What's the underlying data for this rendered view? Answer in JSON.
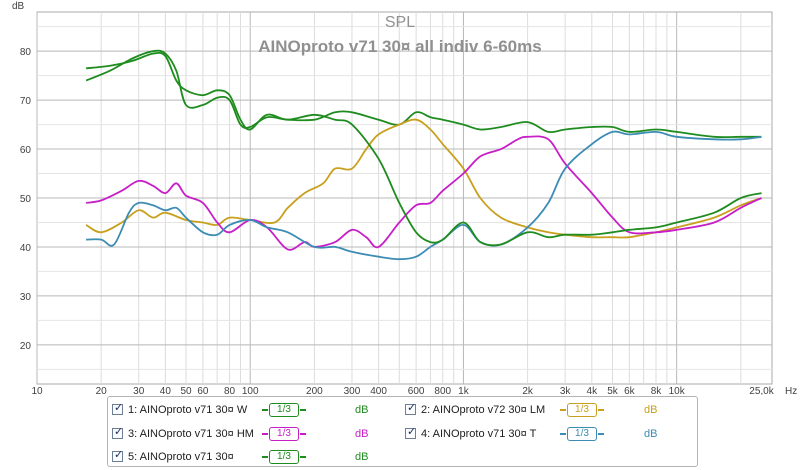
{
  "chart_data": {
    "type": "line",
    "title": "SPL",
    "subtitle": "AINOproto v71 30¤ all indiv 6-60ms",
    "ylabel": "dB",
    "xunit": "Hz",
    "xscale": "log",
    "xlim": [
      10,
      28000
    ],
    "ylim": [
      12,
      88
    ],
    "grid": true,
    "yticks": [
      20,
      30,
      40,
      50,
      60,
      70,
      80
    ],
    "xticks": [
      {
        "v": 10,
        "label": "10"
      },
      {
        "v": 20,
        "label": "20"
      },
      {
        "v": 30,
        "label": "30"
      },
      {
        "v": 40,
        "label": "40"
      },
      {
        "v": 50,
        "label": "50"
      },
      {
        "v": 60,
        "label": "60"
      },
      {
        "v": 80,
        "label": "80"
      },
      {
        "v": 100,
        "label": "100"
      },
      {
        "v": 200,
        "label": "200"
      },
      {
        "v": 300,
        "label": "300"
      },
      {
        "v": 400,
        "label": "400"
      },
      {
        "v": 600,
        "label": "600"
      },
      {
        "v": 800,
        "label": "800"
      },
      {
        "v": 1000,
        "label": "1k"
      },
      {
        "v": 2000,
        "label": "2k"
      },
      {
        "v": 3000,
        "label": "3k"
      },
      {
        "v": 4000,
        "label": "4k"
      },
      {
        "v": 5000,
        "label": "5k"
      },
      {
        "v": 6000,
        "label": "6k"
      },
      {
        "v": 8000,
        "label": "8k"
      },
      {
        "v": 10000,
        "label": "10k"
      },
      {
        "v": 25000,
        "label": "25,0k"
      }
    ],
    "series": [
      {
        "name": "1: AINOproto v71 30¤ W",
        "color": "#1e8c1e",
        "points": [
          [
            17,
            74
          ],
          [
            22,
            76
          ],
          [
            28,
            78.5
          ],
          [
            35,
            80
          ],
          [
            40,
            79.5
          ],
          [
            45,
            76
          ],
          [
            50,
            69
          ],
          [
            60,
            69
          ],
          [
            70,
            70.5
          ],
          [
            80,
            70
          ],
          [
            90,
            65
          ],
          [
            100,
            64.5
          ],
          [
            120,
            66.5
          ],
          [
            150,
            66
          ],
          [
            200,
            66
          ],
          [
            250,
            67.5
          ],
          [
            300,
            67.5
          ],
          [
            400,
            66
          ],
          [
            500,
            65
          ],
          [
            600,
            67.5
          ],
          [
            700,
            66.5
          ],
          [
            800,
            66
          ],
          [
            1000,
            65
          ],
          [
            1200,
            64
          ],
          [
            1500,
            64.5
          ],
          [
            2000,
            65.5
          ],
          [
            2500,
            63.5
          ],
          [
            3000,
            64
          ],
          [
            4000,
            64.5
          ],
          [
            5000,
            64.5
          ],
          [
            6000,
            63.5
          ],
          [
            8000,
            64
          ],
          [
            10000,
            63.5
          ],
          [
            15000,
            62.5
          ],
          [
            20000,
            62.5
          ],
          [
            25000,
            62.5
          ]
        ]
      },
      {
        "name": "2: AINOproto v72 30¤ LM",
        "color": "#c8a01e",
        "points": [
          [
            17,
            44.5
          ],
          [
            20,
            43
          ],
          [
            25,
            45
          ],
          [
            30,
            47.5
          ],
          [
            35,
            46
          ],
          [
            40,
            47
          ],
          [
            50,
            45.5
          ],
          [
            60,
            45
          ],
          [
            70,
            44.5
          ],
          [
            80,
            46
          ],
          [
            100,
            45.5
          ],
          [
            130,
            45
          ],
          [
            150,
            48
          ],
          [
            180,
            51
          ],
          [
            220,
            53
          ],
          [
            250,
            56
          ],
          [
            300,
            56
          ],
          [
            350,
            60
          ],
          [
            400,
            63
          ],
          [
            500,
            65
          ],
          [
            600,
            66
          ],
          [
            700,
            64
          ],
          [
            800,
            61
          ],
          [
            1000,
            56
          ],
          [
            1200,
            50
          ],
          [
            1500,
            46
          ],
          [
            2000,
            44
          ],
          [
            2500,
            43
          ],
          [
            3000,
            42.5
          ],
          [
            4000,
            42
          ],
          [
            5000,
            42
          ],
          [
            6000,
            42
          ],
          [
            8000,
            43
          ],
          [
            10000,
            44
          ],
          [
            15000,
            46
          ],
          [
            20000,
            48.5
          ],
          [
            25000,
            50
          ]
        ]
      },
      {
        "name": "3: AINOproto v71 30¤ HM",
        "color": "#c81ec8",
        "points": [
          [
            17,
            49
          ],
          [
            20,
            49.5
          ],
          [
            25,
            51.5
          ],
          [
            30,
            53.5
          ],
          [
            35,
            52.5
          ],
          [
            40,
            51
          ],
          [
            45,
            53
          ],
          [
            50,
            50.5
          ],
          [
            60,
            49
          ],
          [
            70,
            45
          ],
          [
            80,
            43
          ],
          [
            100,
            45.5
          ],
          [
            120,
            44
          ],
          [
            150,
            39.5
          ],
          [
            180,
            41
          ],
          [
            200,
            40
          ],
          [
            250,
            41
          ],
          [
            300,
            43.5
          ],
          [
            350,
            42
          ],
          [
            400,
            40
          ],
          [
            500,
            45
          ],
          [
            600,
            48.5
          ],
          [
            700,
            49
          ],
          [
            800,
            51.5
          ],
          [
            1000,
            55
          ],
          [
            1200,
            58.5
          ],
          [
            1500,
            60
          ],
          [
            1800,
            62
          ],
          [
            2000,
            62.5
          ],
          [
            2500,
            62
          ],
          [
            3000,
            57
          ],
          [
            4000,
            51
          ],
          [
            5000,
            46
          ],
          [
            6000,
            43
          ],
          [
            8000,
            43
          ],
          [
            10000,
            43.5
          ],
          [
            15000,
            45
          ],
          [
            20000,
            48
          ],
          [
            25000,
            50
          ]
        ]
      },
      {
        "name": "4: AINOproto v71 30¤ T",
        "color": "#3c8cb4",
        "points": [
          [
            17,
            41.5
          ],
          [
            20,
            41.5
          ],
          [
            23,
            40.5
          ],
          [
            27,
            47
          ],
          [
            30,
            49
          ],
          [
            35,
            48.5
          ],
          [
            40,
            47.5
          ],
          [
            45,
            48
          ],
          [
            50,
            46
          ],
          [
            60,
            43
          ],
          [
            70,
            42.5
          ],
          [
            80,
            44.5
          ],
          [
            100,
            45.5
          ],
          [
            120,
            44
          ],
          [
            150,
            43
          ],
          [
            200,
            40
          ],
          [
            250,
            40
          ],
          [
            300,
            39
          ],
          [
            400,
            38
          ],
          [
            500,
            37.5
          ],
          [
            600,
            38
          ],
          [
            700,
            40
          ],
          [
            800,
            41.5
          ],
          [
            1000,
            44.5
          ],
          [
            1200,
            41
          ],
          [
            1500,
            40.5
          ],
          [
            2000,
            44
          ],
          [
            2500,
            49
          ],
          [
            3000,
            56
          ],
          [
            4000,
            61
          ],
          [
            5000,
            63.5
          ],
          [
            6000,
            63
          ],
          [
            8000,
            63.5
          ],
          [
            10000,
            62.5
          ],
          [
            15000,
            62
          ],
          [
            20000,
            62
          ],
          [
            25000,
            62.5
          ]
        ]
      },
      {
        "name": "5: AINOproto v71 30¤",
        "color": "#1e8c1e",
        "points": [
          [
            17,
            76.5
          ],
          [
            22,
            77
          ],
          [
            28,
            78
          ],
          [
            35,
            79.5
          ],
          [
            40,
            79
          ],
          [
            45,
            74
          ],
          [
            50,
            72
          ],
          [
            60,
            71
          ],
          [
            70,
            72
          ],
          [
            80,
            71
          ],
          [
            90,
            66
          ],
          [
            100,
            64
          ],
          [
            120,
            67
          ],
          [
            150,
            66
          ],
          [
            200,
            67
          ],
          [
            250,
            66
          ],
          [
            300,
            65
          ],
          [
            400,
            58
          ],
          [
            500,
            49
          ],
          [
            600,
            43
          ],
          [
            700,
            41
          ],
          [
            800,
            41.5
          ],
          [
            1000,
            45
          ],
          [
            1200,
            41
          ],
          [
            1500,
            40.5
          ],
          [
            2000,
            43
          ],
          [
            2500,
            42
          ],
          [
            3000,
            42.5
          ],
          [
            4000,
            42.5
          ],
          [
            5000,
            43
          ],
          [
            6000,
            43.5
          ],
          [
            8000,
            44
          ],
          [
            10000,
            45
          ],
          [
            15000,
            47
          ],
          [
            20000,
            50
          ],
          [
            25000,
            51
          ]
        ]
      }
    ]
  },
  "legend": [
    {
      "checked": "✓",
      "name": "1: AINOproto v71 30¤ W",
      "smoothing": "1/3",
      "unit": "dB",
      "color": "#1e8c1e"
    },
    {
      "checked": "✓",
      "name": "2: AINOproto v72 30¤ LM",
      "smoothing": "1/3",
      "unit": "dB",
      "color": "#c8a01e"
    },
    {
      "checked": "✓",
      "name": "3: AINOproto v71 30¤ HM",
      "smoothing": "1/3",
      "unit": "dB",
      "color": "#c81ec8"
    },
    {
      "checked": "✓",
      "name": "4: AINOproto v71 30¤ T",
      "smoothing": "1/3",
      "unit": "dB",
      "color": "#3c8cb4"
    },
    {
      "checked": "✓",
      "name": "5: AINOproto v71 30¤",
      "smoothing": "1/3",
      "unit": "dB",
      "color": "#1e8c1e"
    }
  ]
}
